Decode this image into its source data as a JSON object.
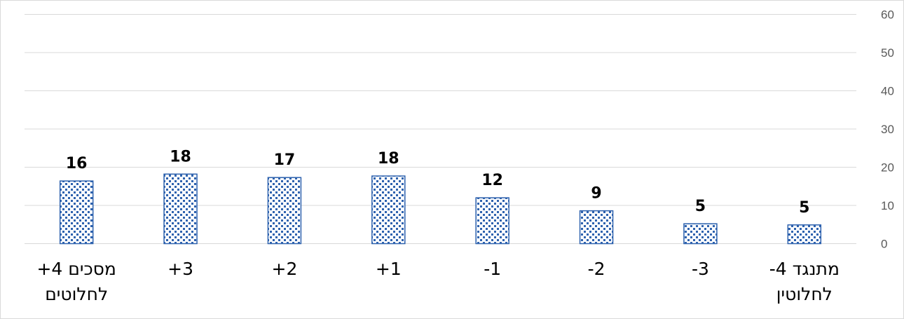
{
  "chart_data": {
    "type": "bar",
    "categories": [
      [
        "+4  מסכים",
        "לחלוטים"
      ],
      [
        "+3"
      ],
      [
        "+2"
      ],
      [
        "+1"
      ],
      [
        "-1"
      ],
      [
        "-2"
      ],
      [
        "-3"
      ],
      [
        "-4  מתנגד",
        "לחלוטין"
      ]
    ],
    "values": [
      16,
      18,
      17,
      18,
      12,
      9,
      5,
      5
    ],
    "precise_values": [
      16.4,
      18.2,
      17.3,
      17.7,
      12.0,
      8.6,
      5.2,
      4.9
    ],
    "ylim": [
      0,
      60
    ],
    "yticks": [
      0,
      10,
      20,
      30,
      40,
      50,
      60
    ],
    "y_axis_side": "right",
    "grid": true,
    "legend": "none",
    "title": "",
    "xlabel": "",
    "ylabel": "",
    "colors": {
      "bar_fill": "#ffffff",
      "bar_pattern": "#2e62ae",
      "bar_border": "#2e62ae",
      "grid": "#d9d9d9",
      "tick_text": "#595959"
    }
  }
}
